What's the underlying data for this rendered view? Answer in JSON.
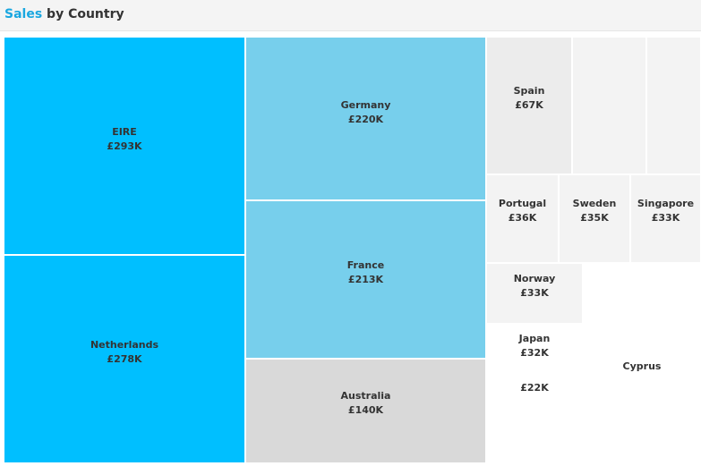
{
  "header": {
    "title_accent": "Sales",
    "title_rest": " by Country",
    "accent_color": "#1aa7e0",
    "background": "#f4f4f4"
  },
  "chart_data": {
    "type": "treemap",
    "title": "Sales by Country",
    "unit": "£",
    "items": [
      {
        "name": "EIRE",
        "label": "£293K",
        "value": 293000,
        "color": "#00bfff"
      },
      {
        "name": "Netherlands",
        "label": "£278K",
        "value": 278000,
        "color": "#00bfff"
      },
      {
        "name": "Germany",
        "label": "£220K",
        "value": 220000,
        "color": "#77cfec"
      },
      {
        "name": "France",
        "label": "£213K",
        "value": 213000,
        "color": "#77cfec"
      },
      {
        "name": "Australia",
        "label": "£140K",
        "value": 140000,
        "color": "#d9d9d9"
      },
      {
        "name": "Spain",
        "label": "£67K",
        "value": 67000,
        "color": "#ececec"
      },
      {
        "name": "",
        "label": "",
        "value": null,
        "color": "#f3f3f3"
      },
      {
        "name": "",
        "label": "",
        "value": null,
        "color": "#f3f3f3"
      },
      {
        "name": "Portugal",
        "label": "£36K",
        "value": 36000,
        "color": "#f3f3f3"
      },
      {
        "name": "Sweden",
        "label": "£35K",
        "value": 35000,
        "color": "#f3f3f3"
      },
      {
        "name": "Singapore",
        "label": "£33K",
        "value": 33000,
        "color": "#f3f3f3"
      },
      {
        "name": "Norway",
        "label": "£33K",
        "value": 33000,
        "color": "#f3f3f3"
      },
      {
        "name": "Japan",
        "label": "£32K",
        "value": 32000,
        "color": "#ffffff"
      },
      {
        "name": "",
        "label": "£22K",
        "value": 22000,
        "color": "#ffffff"
      },
      {
        "name": "Cyprus",
        "label": "",
        "value": null,
        "color": "#ffffff"
      }
    ]
  }
}
